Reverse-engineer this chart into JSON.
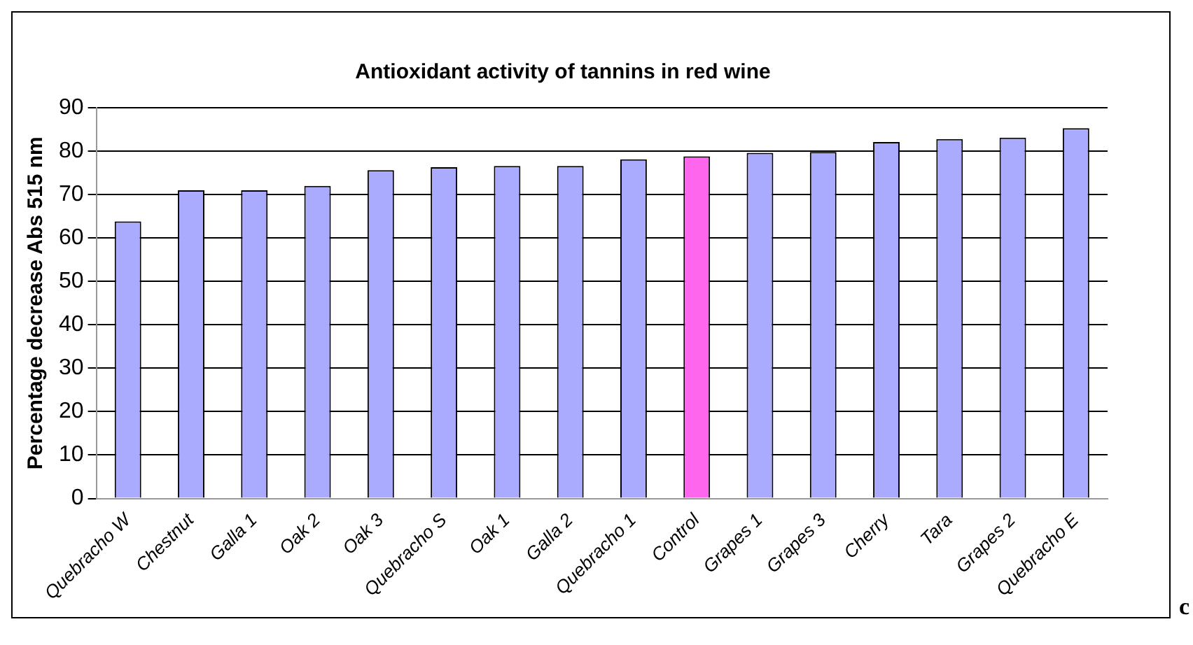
{
  "chart_data": {
    "type": "bar",
    "title": "Antioxidant activity of tannins in red wine",
    "ylabel": "Percentage decrease Abs 515 nm",
    "categories": [
      "Quebracho W",
      "Chestnut",
      "Galla 1",
      "Oak 2",
      "Oak 3",
      "Quebracho S",
      "Oak 1",
      "Galla 2",
      "Quebracho 1",
      "Control",
      "Grapes 1",
      "Grapes 3",
      "Cherry",
      "Tara",
      "Grapes 2",
      "Quebracho E"
    ],
    "values": [
      63.8,
      71,
      71,
      72,
      75.6,
      76.3,
      76.6,
      76.6,
      78.1,
      78.8,
      79.6,
      79.8,
      82.1,
      82.8,
      83.1,
      85.3
    ],
    "colors": [
      "#aaaaff",
      "#aaaaff",
      "#aaaaff",
      "#aaaaff",
      "#aaaaff",
      "#aaaaff",
      "#aaaaff",
      "#aaaaff",
      "#aaaaff",
      "#ff66ee",
      "#aaaaff",
      "#aaaaff",
      "#aaaaff",
      "#aaaaff",
      "#aaaaff",
      "#aaaaff"
    ],
    "ylim": [
      0,
      90
    ],
    "yticks": [
      0,
      10,
      20,
      30,
      40,
      50,
      60,
      70,
      80,
      90
    ],
    "grid": "y",
    "legend": false,
    "annotations": [
      "c"
    ]
  }
}
